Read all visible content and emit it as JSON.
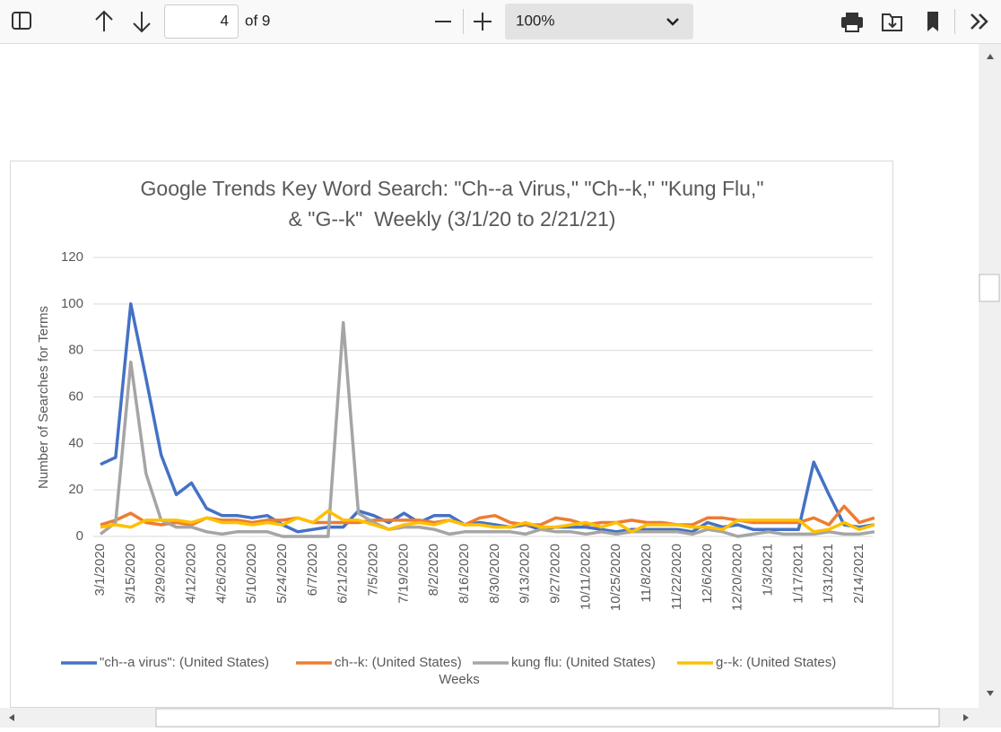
{
  "toolbar": {
    "page": "4",
    "page_count": "of 9",
    "zoom": "100%"
  },
  "chart_data": {
    "type": "line",
    "title": [
      "Google Trends Key Word Search: \"Ch--a Virus,\" \"Ch--k,\" \"Kung Flu,\"",
      "& \"G--k\"  Weekly (3/1/20 to 2/21/21)"
    ],
    "ylabel": "Number of Searches for Terms",
    "xlabel": "Weeks",
    "categories": [
      "3/1/2020",
      null,
      "3/15/2020",
      null,
      "3/29/2020",
      null,
      "4/12/2020",
      null,
      "4/26/2020",
      null,
      "5/10/2020",
      null,
      "5/24/2020",
      null,
      "6/7/2020",
      null,
      "6/21/2020",
      null,
      "7/5/2020",
      null,
      "7/19/2020",
      null,
      "8/2/2020",
      null,
      "8/16/2020",
      null,
      "8/30/2020",
      null,
      "9/13/2020",
      null,
      "9/27/2020",
      null,
      "10/11/2020",
      null,
      "10/25/2020",
      null,
      "11/8/2020",
      null,
      "11/22/2020",
      null,
      "12/6/2020",
      null,
      "12/20/2020",
      null,
      "1/3/2021",
      null,
      "1/17/2021",
      null,
      "1/31/2021",
      null,
      "2/14/2021",
      null
    ],
    "series": [
      {
        "name": "\"ch--a virus\": (United States)",
        "color": "#4472c4",
        "values": [
          31,
          34,
          100,
          68,
          35,
          18,
          23,
          12,
          9,
          9,
          8,
          9,
          5,
          2,
          3,
          4,
          4,
          11,
          9,
          6,
          10,
          6,
          9,
          9,
          5,
          6,
          5,
          4,
          5,
          3,
          4,
          4,
          4,
          3,
          2,
          3,
          3,
          3,
          3,
          2,
          6,
          4,
          5,
          3,
          3,
          3,
          3,
          32,
          18,
          5,
          4,
          5
        ]
      },
      {
        "name": "ch--k: (United States)",
        "color": "#ed7d31",
        "values": [
          5,
          7,
          10,
          6,
          5,
          6,
          5,
          8,
          7,
          7,
          6,
          7,
          7,
          8,
          6,
          6,
          6,
          6,
          7,
          7,
          7,
          7,
          6,
          7,
          5,
          8,
          9,
          6,
          5,
          5,
          8,
          7,
          5,
          6,
          6,
          7,
          6,
          6,
          5,
          5,
          8,
          8,
          7,
          6,
          6,
          6,
          6,
          8,
          5,
          13,
          6,
          8
        ]
      },
      {
        "name": "kung flu: (United States)",
        "color": "#a5a5a5",
        "values": [
          1,
          6,
          75,
          27,
          7,
          4,
          4,
          2,
          1,
          2,
          2,
          2,
          0,
          0,
          0,
          0,
          92,
          10,
          6,
          3,
          4,
          4,
          3,
          1,
          2,
          2,
          2,
          2,
          1,
          3,
          2,
          2,
          1,
          2,
          1,
          2,
          2,
          2,
          2,
          1,
          3,
          2,
          0,
          1,
          2,
          1,
          1,
          1,
          2,
          1,
          1,
          2
        ]
      },
      {
        "name": "g--k: (United States)",
        "color": "#ffc000",
        "values": [
          4,
          5,
          4,
          7,
          7,
          7,
          6,
          8,
          6,
          6,
          5,
          6,
          5,
          8,
          6,
          11,
          7,
          7,
          5,
          3,
          5,
          6,
          5,
          7,
          5,
          5,
          4,
          4,
          6,
          4,
          4,
          5,
          6,
          4,
          6,
          2,
          5,
          5,
          5,
          4,
          4,
          3,
          7,
          7,
          7,
          7,
          7,
          2,
          3,
          6,
          3,
          5
        ]
      }
    ],
    "ylim": [
      0,
      120
    ],
    "yticks": [
      0,
      20,
      40,
      60,
      80,
      100,
      120
    ],
    "grid": true,
    "legend": "bottom"
  }
}
